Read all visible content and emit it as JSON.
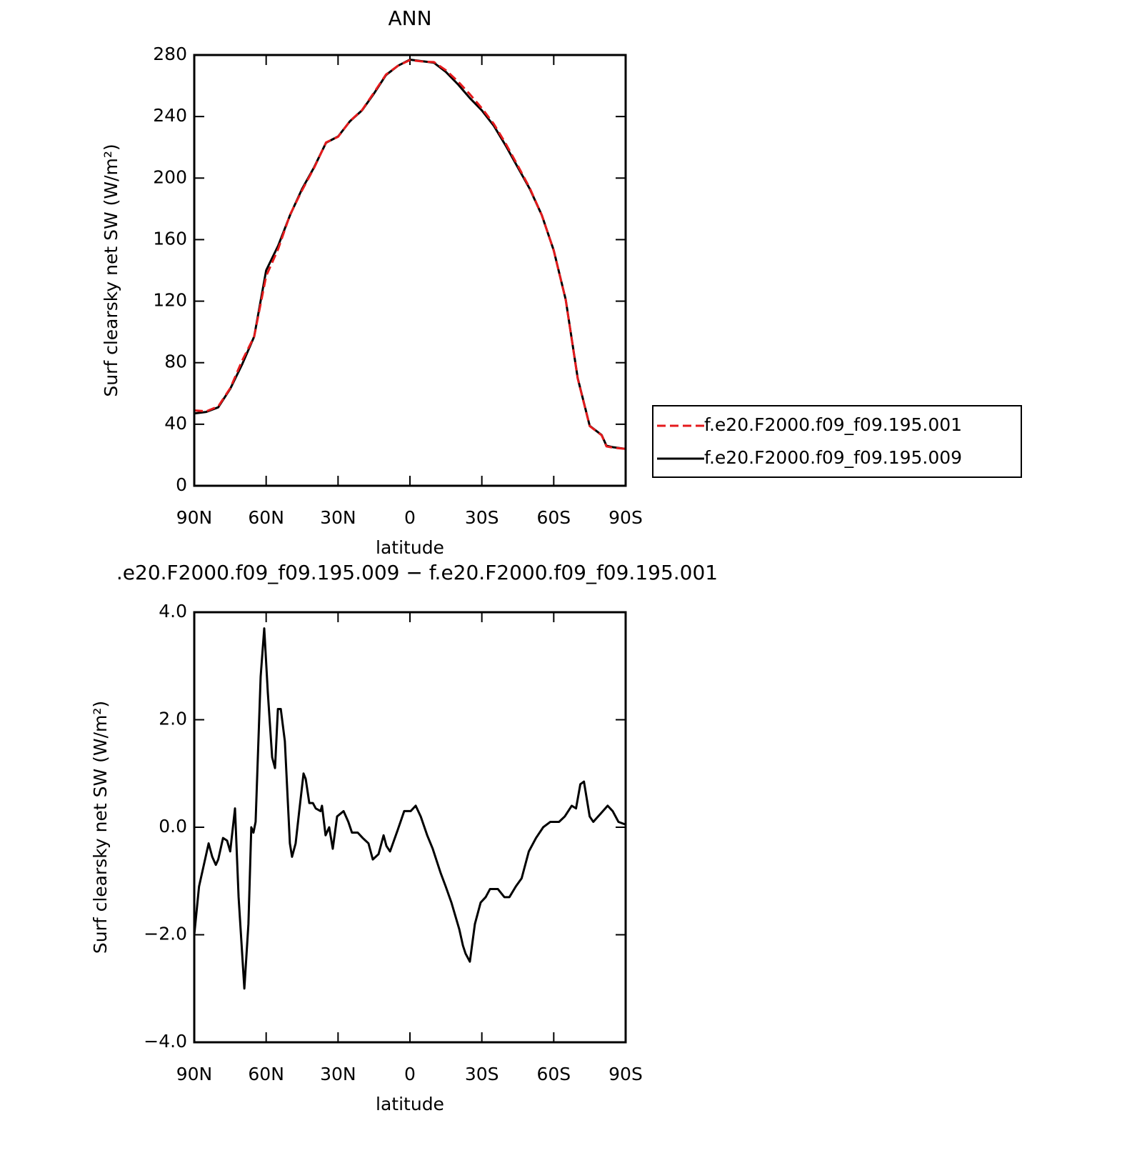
{
  "chart_data": [
    {
      "type": "line",
      "title": "ANN",
      "x_label": "latitude",
      "y_label": "Surf clearsky net SW (W/m²)",
      "x": [
        90,
        85,
        80,
        75,
        70,
        65,
        60,
        55,
        50,
        45,
        40,
        35,
        30,
        25,
        20,
        15,
        10,
        5,
        0,
        -5,
        -10,
        -15,
        -20,
        -25,
        -30,
        -35,
        -40,
        -45,
        -50,
        -55,
        -60,
        -65,
        -70,
        -75,
        -80,
        -82,
        -85,
        -90
      ],
      "series": [
        {
          "name": "f.e20.F2000.f09_f09.195.001",
          "color": "#e41a1c",
          "line_style": "dashed",
          "values": [
            49,
            48.4,
            51.6,
            63.4,
            81.4,
            97,
            136.3,
            153.9,
            176.3,
            192.1,
            206.6,
            223.2,
            226.8,
            237.1,
            244.2,
            255.6,
            267.3,
            273,
            276.7,
            275.8,
            275.4,
            270.1,
            262.9,
            254.5,
            245.4,
            235.2,
            222.3,
            208.1,
            193.5,
            176,
            152.9,
            120.8,
            69.7,
            38.8,
            32.8,
            25.6,
            24.7,
            24
          ]
        },
        {
          "name": "f.e20.F2000.f09_f09.195.009",
          "color": "#000000",
          "line_style": "solid",
          "values": [
            47,
            48,
            51,
            63,
            79,
            97,
            140,
            156,
            176,
            193,
            207,
            223,
            227,
            237,
            244,
            255,
            267,
            273,
            277,
            276,
            275,
            269,
            261,
            252,
            244,
            234,
            221,
            207,
            193,
            176,
            153,
            121,
            70,
            39,
            33,
            26,
            25,
            24
          ]
        }
      ],
      "xlim": [
        90,
        -90
      ],
      "xticks": [
        {
          "value": 90,
          "label": "90N"
        },
        {
          "value": 60,
          "label": "60N"
        },
        {
          "value": 30,
          "label": "30N"
        },
        0,
        {
          "value": -30,
          "label": "30S"
        },
        {
          "value": -60,
          "label": "60S"
        },
        {
          "value": -90,
          "label": "90S"
        }
      ],
      "ylim": [
        0,
        280
      ],
      "yticks": [
        0,
        40,
        80,
        120,
        160,
        200,
        240,
        280
      ],
      "legend": "right"
    },
    {
      "type": "line",
      "title": ".e20.F2000.f09_f09.195.009 − f.e20.F2000.f09_f09.195.001",
      "x_label": "latitude",
      "y_label": "Surf clearsky net SW (W/m²)",
      "x": [
        90,
        88,
        86,
        84,
        82.5,
        81,
        80,
        78,
        76.3,
        75,
        73,
        71.5,
        69.1,
        67.4,
        66.2,
        65.3,
        64.4,
        62.3,
        60.8,
        59.3,
        57.5,
        56.3,
        55.1,
        53.9,
        52.2,
        50.1,
        49.2,
        47.7,
        46.2,
        44.4,
        43.5,
        42,
        40.5,
        39.3,
        37.3,
        36.7,
        35.2,
        33.7,
        32.2,
        30.4,
        27.7,
        25.7,
        24.2,
        21.8,
        19.7,
        17.3,
        15.5,
        13.1,
        11,
        9.8,
        8.3,
        5.1,
        2.4,
        -0.3,
        -2.4,
        -4.5,
        -7.2,
        -9.5,
        -12.8,
        -14.9,
        -17.3,
        -20.6,
        -22.1,
        -23.2,
        -25,
        -27.1,
        -29.5,
        -31.6,
        -33.4,
        -36.7,
        -39.4,
        -41.5,
        -44.2,
        -46.6,
        -49.6,
        -52.6,
        -55.6,
        -58.6,
        -62.2,
        -64.6,
        -67.5,
        -69.3,
        -71.1,
        -72.6,
        -75,
        -76.5,
        -79.5,
        -82.5,
        -84.6,
        -87,
        -90
      ],
      "values": [
        -2.0,
        -1.1,
        -0.7,
        -0.3,
        -0.55,
        -0.7,
        -0.6,
        -0.2,
        -0.25,
        -0.45,
        0.35,
        -1.3,
        -3.0,
        -1.8,
        0.0,
        -0.1,
        0.1,
        2.8,
        3.7,
        2.5,
        1.3,
        1.1,
        2.2,
        2.2,
        1.6,
        -0.3,
        -0.55,
        -0.3,
        0.3,
        1.0,
        0.9,
        0.45,
        0.45,
        0.35,
        0.3,
        0.4,
        -0.15,
        0.0,
        -0.4,
        0.2,
        0.3,
        0.1,
        -0.1,
        -0.1,
        -0.2,
        -0.3,
        -0.6,
        -0.5,
        -0.15,
        -0.35,
        -0.45,
        -0.05,
        0.3,
        0.3,
        0.4,
        0.2,
        -0.15,
        -0.4,
        -0.85,
        -1.1,
        -1.4,
        -1.9,
        -2.2,
        -2.35,
        -2.5,
        -1.8,
        -1.4,
        -1.3,
        -1.15,
        -1.15,
        -1.3,
        -1.3,
        -1.1,
        -0.95,
        -0.45,
        -0.2,
        0.0,
        0.1,
        0.1,
        0.2,
        0.4,
        0.35,
        0.8,
        0.85,
        0.2,
        0.1,
        0.25,
        0.4,
        0.3,
        0.1,
        0.05
      ],
      "color": "#000000",
      "xlim": [
        90,
        -90
      ],
      "xticks": [
        {
          "value": 90,
          "label": "90N"
        },
        {
          "value": 60,
          "label": "60N"
        },
        {
          "value": 30,
          "label": "30N"
        },
        0,
        {
          "value": -30,
          "label": "30S"
        },
        {
          "value": -60,
          "label": "60S"
        },
        {
          "value": -90,
          "label": "90S"
        }
      ],
      "ylim": [
        -4,
        4
      ],
      "yticks": [
        {
          "value": -4,
          "label": "−4.0"
        },
        {
          "value": -2,
          "label": "−2.0"
        },
        {
          "value": 0,
          "label": "0.0"
        },
        {
          "value": 2,
          "label": "2.0"
        },
        {
          "value": 4,
          "label": "4.0"
        }
      ]
    }
  ]
}
